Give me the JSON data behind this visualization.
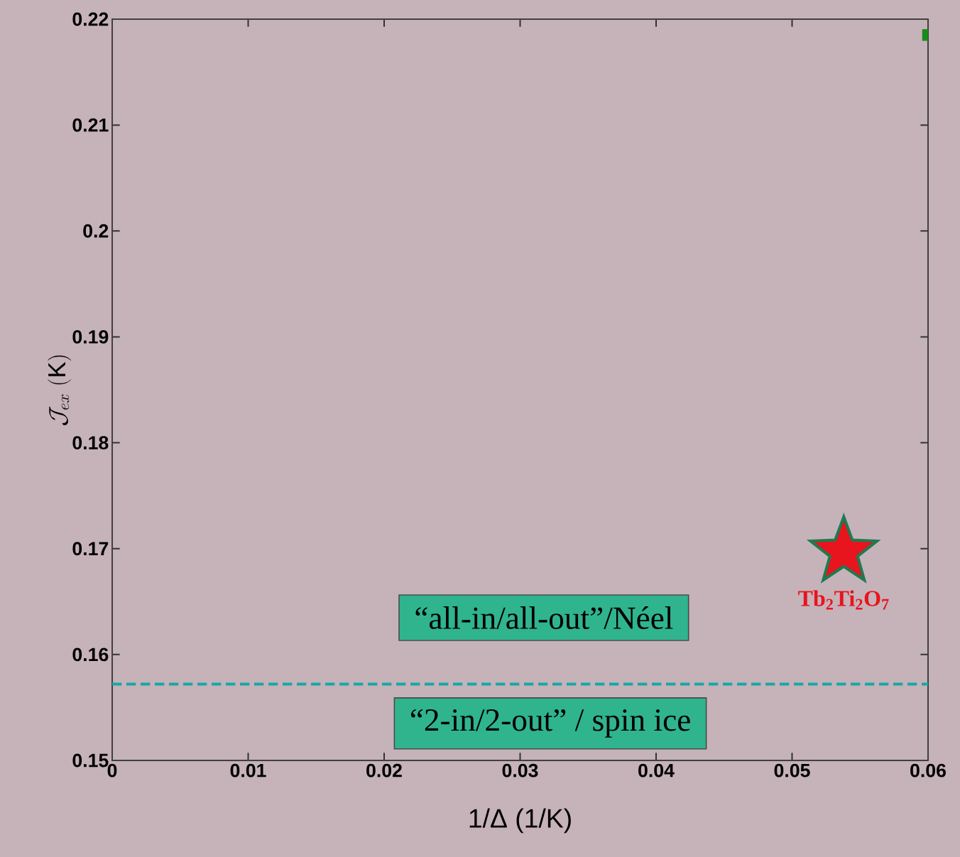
{
  "chart_data": {
    "type": "scatter",
    "xlabel": "1/Δ (1/K)",
    "ylabel": "\\mathcal{J}_{ex}\\ (\\mathrm{K})",
    "series": [
      {
        "name": "**Tb$_{2}$Ti$_{2}$O$_{7}$**",
        "color": "#e8141e",
        "marker": "star",
        "x": [
          0.0538
        ],
        "values": [
          0.1697
        ]
      },
      {
        "color": "#1a8a1a",
        "marker": "square",
        "x": [
          0.06
        ],
        "values": [
          0.2185
        ]
      }
    ],
    "ref_lines": [
      {
        "axis": "y",
        "value": 0.1572,
        "color": "#17a7a7",
        "line_style": "dashed"
      }
    ],
    "annotations": [
      "“all-in/all-out”/Néel",
      "“2-in/2-out” / spin ice"
    ],
    "xlim": [
      0,
      0.06
    ],
    "ylim": [
      0.15,
      0.22
    ],
    "xticks": [
      0,
      0.01,
      0.02,
      0.03,
      0.04,
      0.05,
      0.06
    ],
    "yticks": [
      0.15,
      0.16,
      0.17,
      0.18,
      0.19,
      0.2,
      0.21,
      0.22
    ]
  }
}
